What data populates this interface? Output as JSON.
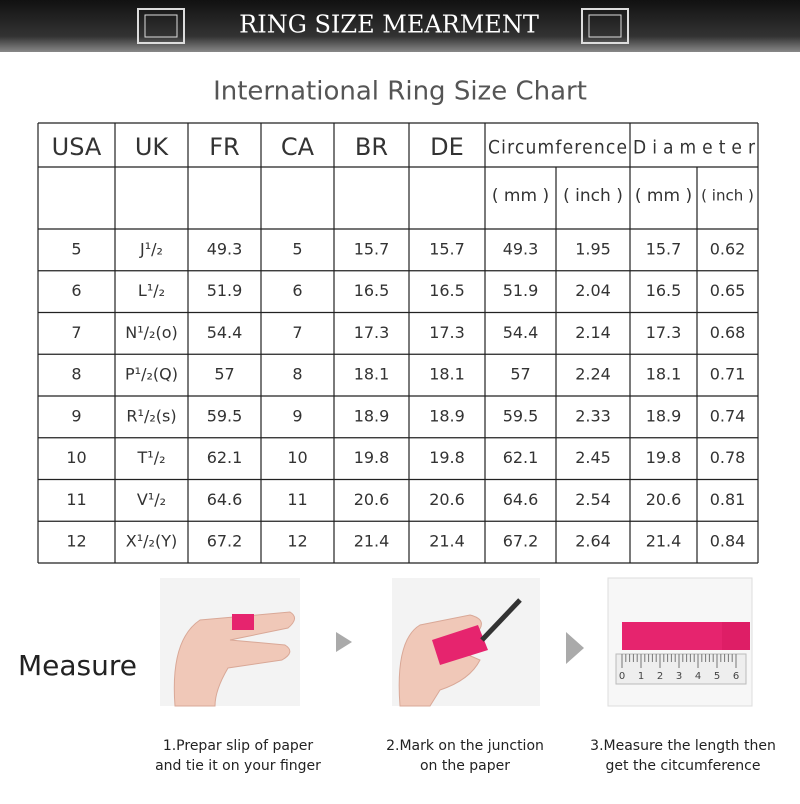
{
  "header": {
    "title": "RING SIZE MEARMENT"
  },
  "chart_title": "International Ring Size Chart",
  "table": {
    "columns": [
      "USA",
      "UK",
      "FR",
      "CA",
      "BR",
      "DE",
      "Circumference",
      "Diameter"
    ],
    "units": [
      "( mm )",
      "( inch )",
      "( mm )",
      "( inch )"
    ],
    "rows": [
      [
        "5",
        "J¹/₂",
        "49.3",
        "5",
        "15.7",
        "15.7",
        "49.3",
        "1.95",
        "15.7",
        "0.62"
      ],
      [
        "6",
        "L¹/₂",
        "51.9",
        "6",
        "16.5",
        "16.5",
        "51.9",
        "2.04",
        "16.5",
        "0.65"
      ],
      [
        "7",
        "N¹/₂(o)",
        "54.4",
        "7",
        "17.3",
        "17.3",
        "54.4",
        "2.14",
        "17.3",
        "0.68"
      ],
      [
        "8",
        "P¹/₂(Q)",
        "57",
        "8",
        "18.1",
        "18.1",
        "57",
        "2.24",
        "18.1",
        "0.71"
      ],
      [
        "9",
        "R¹/₂(s)",
        "59.5",
        "9",
        "18.9",
        "18.9",
        "59.5",
        "2.33",
        "18.9",
        "0.74"
      ],
      [
        "10",
        "T¹/₂",
        "62.1",
        "10",
        "19.8",
        "19.8",
        "62.1",
        "2.45",
        "19.8",
        "0.78"
      ],
      [
        "11",
        "V¹/₂",
        "64.6",
        "11",
        "20.6",
        "20.6",
        "64.6",
        "2.54",
        "20.6",
        "0.81"
      ],
      [
        "12",
        "X¹/₂(Y)",
        "67.2",
        "12",
        "21.4",
        "21.4",
        "67.2",
        "2.64",
        "21.4",
        "0.84"
      ]
    ]
  },
  "measure": {
    "label": "Measure",
    "steps": [
      [
        "1.Prepar slip of paper",
        "and tie it on your finger"
      ],
      [
        "2.Mark on the junction",
        "on the paper"
      ],
      [
        "3.Measure the length then",
        "get the citcumference"
      ]
    ],
    "ruler_labels": [
      "0",
      "1",
      "2",
      "3",
      "4",
      "5",
      "6"
    ]
  }
}
